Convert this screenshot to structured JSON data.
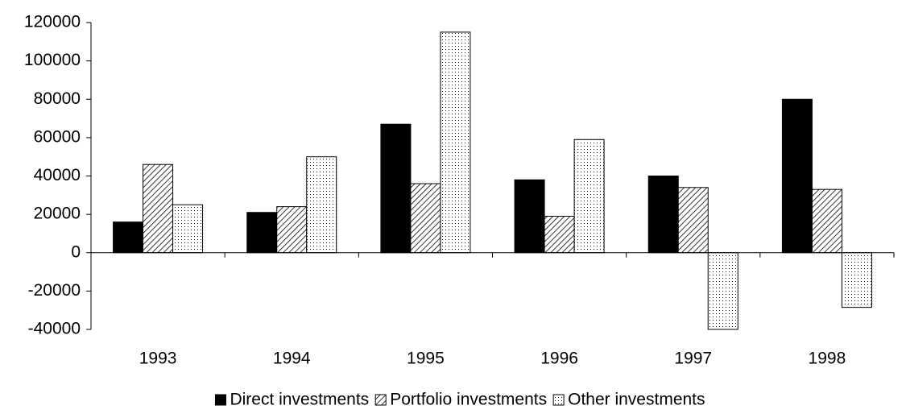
{
  "chart_data": {
    "type": "bar",
    "categories": [
      "1993",
      "1994",
      "1995",
      "1996",
      "1997",
      "1998"
    ],
    "series": [
      {
        "name": "Direct investments",
        "color": "#000000",
        "pattern": "solid",
        "values": [
          16000,
          21000,
          67000,
          38000,
          40000,
          80000
        ]
      },
      {
        "name": "Portfolio investments",
        "color": "#000000",
        "pattern": "hatch",
        "values": [
          46000,
          24000,
          36000,
          19000,
          34000,
          33000
        ]
      },
      {
        "name": "Other investments",
        "color": "#000000",
        "pattern": "dots",
        "values": [
          25000,
          50000,
          115000,
          59000,
          -40000,
          -28500
        ]
      }
    ],
    "ylim": [
      -40000,
      120000
    ],
    "yticks": [
      -40000,
      -20000,
      0,
      20000,
      40000,
      60000,
      80000,
      100000,
      120000
    ],
    "legend": "bottom"
  }
}
